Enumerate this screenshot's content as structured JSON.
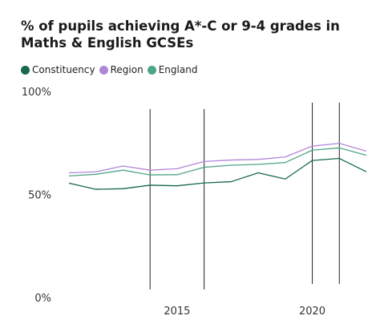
{
  "chart_data": {
    "type": "line",
    "title": "% of pupils achieving A*-C or 9-4 grades in Maths & English GCSEs",
    "x": [
      2011,
      2012,
      2013,
      2014,
      2015,
      2016,
      2017,
      2018,
      2019,
      2020,
      2021,
      2022
    ],
    "series": [
      {
        "name": "Constituency",
        "color": "#16694a",
        "values": [
          55.5,
          52.5,
          52.8,
          54.5,
          54.2,
          55.6,
          56.2,
          60.5,
          57.5,
          66.5,
          67.5,
          61
        ]
      },
      {
        "name": "Region",
        "color": "#b086d9",
        "values": [
          60.5,
          61,
          63.8,
          61.8,
          62.5,
          66,
          66.7,
          67,
          68.2,
          73.5,
          74.8,
          71
        ]
      },
      {
        "name": "England",
        "color": "#4fa58a",
        "values": [
          59,
          59.8,
          61.8,
          59.5,
          59.6,
          63.2,
          64.2,
          64.6,
          65.5,
          71.5,
          72.6,
          69
        ]
      }
    ],
    "ylim": [
      0,
      100
    ],
    "y_ticks": [
      "0%",
      "50%",
      "100%"
    ],
    "y_tick_values": [
      0,
      50,
      100
    ],
    "x_ticks": [
      "2015",
      "2020"
    ],
    "x_tick_values": [
      2015,
      2020
    ],
    "xlim": [
      2011,
      2022
    ],
    "vertical_markers": [
      2014,
      2016,
      2020,
      2021
    ],
    "grid": false,
    "legend_placement": "top-left"
  }
}
